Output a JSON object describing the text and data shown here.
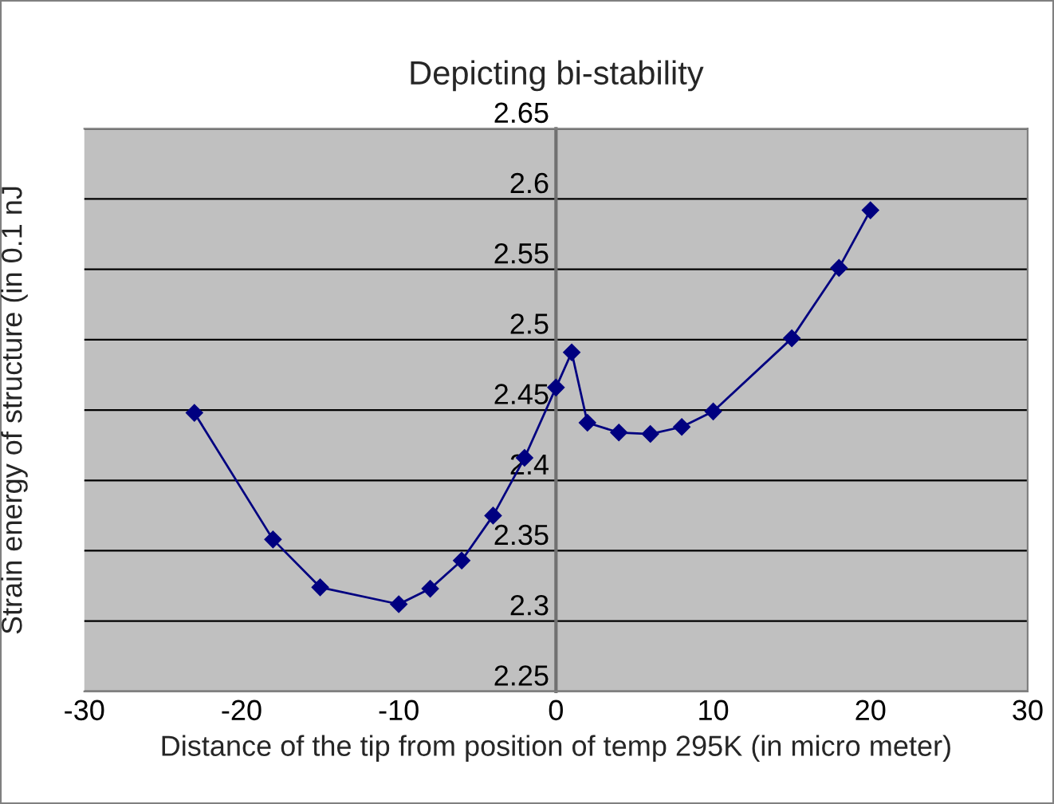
{
  "chart_data": {
    "type": "line",
    "title": "Depicting bi-stability",
    "xlabel": "Distance of the tip from position of temp 295K (in micro meter)",
    "ylabel": "Strain energy of structure (in 0.1 nJ",
    "series": [
      {
        "color": "#000080",
        "x": [
          -23,
          -18,
          -15,
          -10,
          -8,
          -6,
          -4,
          -2,
          0,
          1,
          2,
          4,
          6,
          8,
          10,
          15,
          18,
          20
        ],
        "values": [
          2.448,
          2.358,
          2.324,
          2.312,
          2.323,
          2.343,
          2.375,
          2.416,
          2.466,
          2.491,
          2.441,
          2.434,
          2.433,
          2.438,
          2.449,
          2.501,
          2.551,
          2.592
        ]
      }
    ],
    "xlim": [
      -30,
      30
    ],
    "xticks": [
      -30,
      -20,
      -10,
      0,
      10,
      20,
      30
    ],
    "ylim": [
      2.25,
      2.65
    ],
    "yticks": [
      2.25,
      2.3,
      2.35,
      2.4,
      2.45,
      2.5,
      2.55,
      2.6,
      2.65
    ],
    "grid": "y",
    "marker": "diamond",
    "line_style": "solid"
  }
}
